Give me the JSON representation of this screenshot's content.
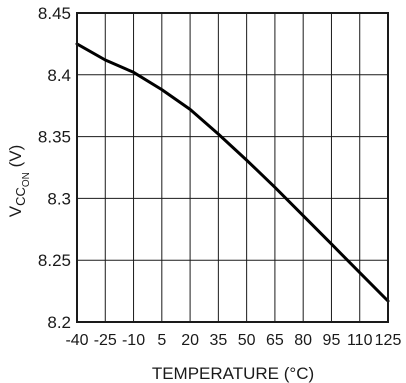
{
  "chart_data": {
    "type": "line",
    "xlabel": "TEMPERATURE (°C)",
    "ylabel": {
      "main": "V",
      "sub": "CC",
      "subsub": "ON",
      "unit": " (V)"
    },
    "x_ticks": [
      -40,
      -25,
      -10,
      5,
      20,
      35,
      50,
      65,
      80,
      95,
      110,
      125
    ],
    "y_ticks": [
      "8.2",
      "8.25",
      "8.3",
      "8.35",
      "8.4",
      "8.45"
    ],
    "xlim": [
      -40,
      125
    ],
    "ylim": [
      8.2,
      8.45
    ],
    "grid": true,
    "series": [
      {
        "x": [
          -40,
          -25,
          -10,
          5,
          20,
          35,
          50,
          65,
          80,
          95,
          110,
          125
        ],
        "values": [
          8.425,
          8.412,
          8.402,
          8.388,
          8.372,
          8.352,
          8.331,
          8.309,
          8.286,
          8.263,
          8.24,
          8.217
        ]
      }
    ]
  },
  "colors": {
    "line": "#000000",
    "grid": "#1a1a1a",
    "frame": "#1a1a1a"
  }
}
